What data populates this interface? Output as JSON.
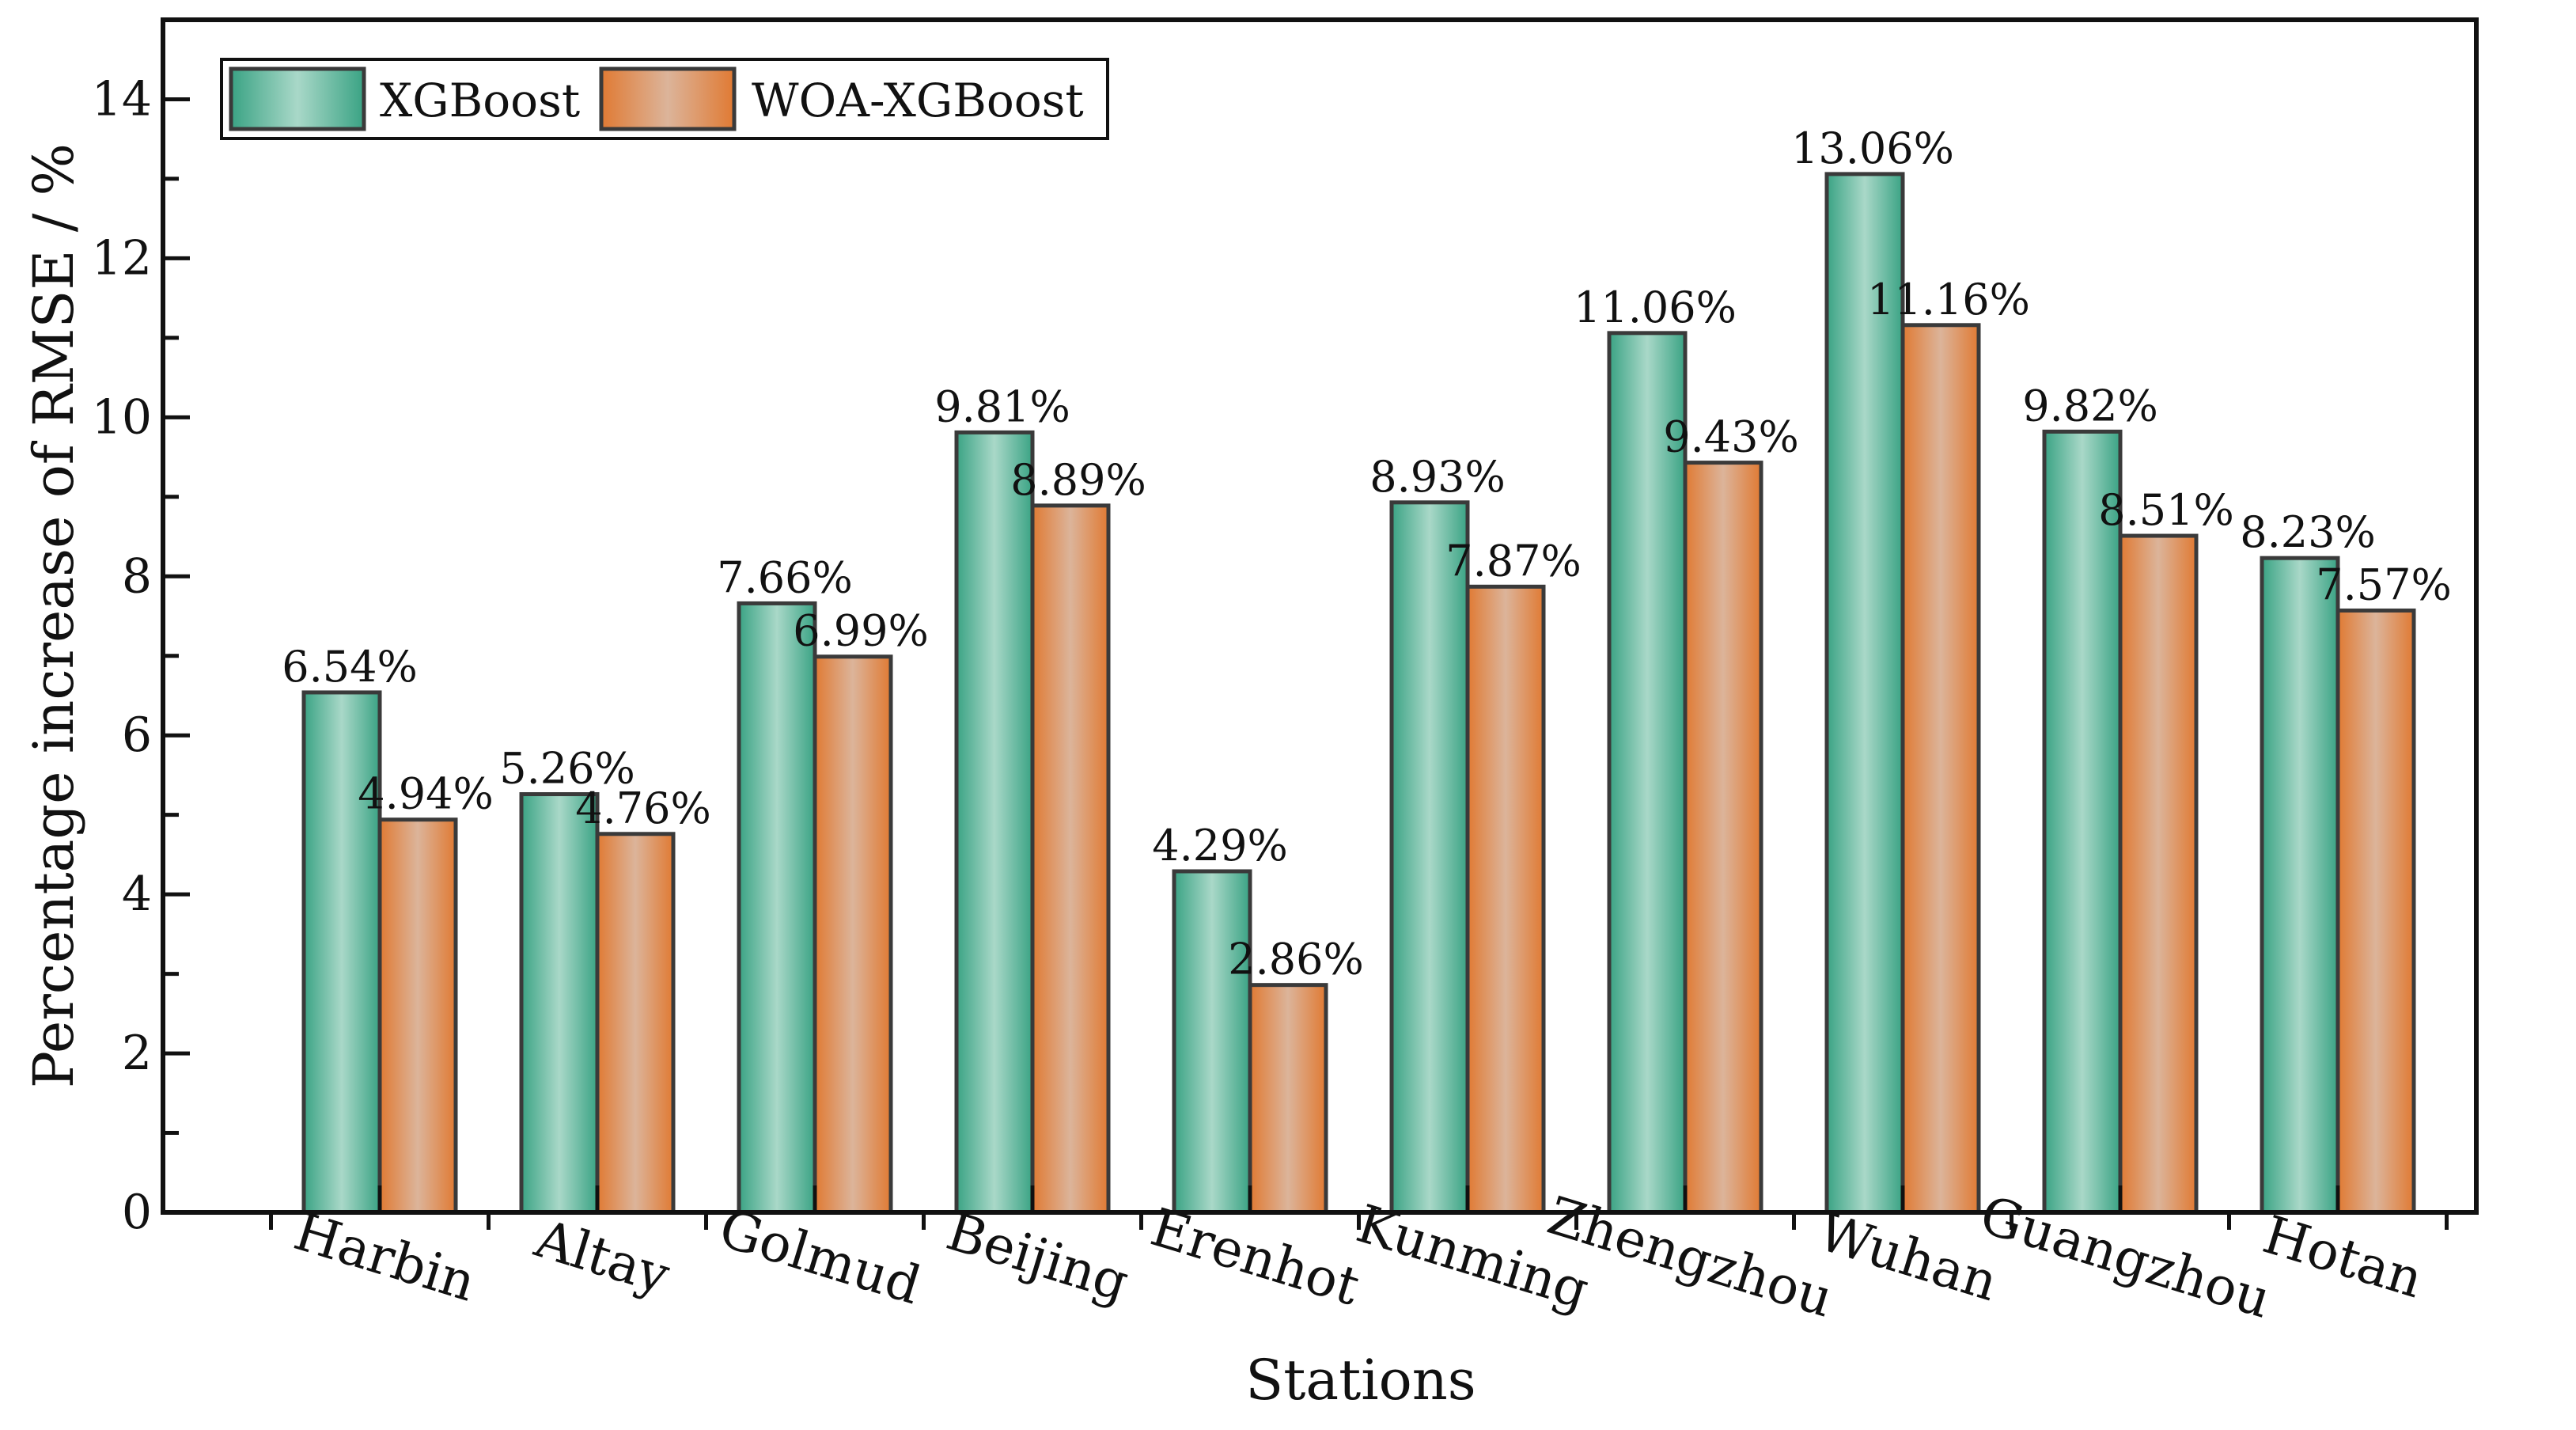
{
  "chart_data": {
    "type": "bar",
    "title": "",
    "xlabel": "Stations",
    "ylabel": "Percentage increase of RMSE / %",
    "ylim": [
      0,
      15
    ],
    "yticks": [
      0,
      2,
      4,
      6,
      8,
      10,
      12,
      14
    ],
    "legend_position": "top-left",
    "grid": false,
    "categories": [
      "Harbin",
      "Altay",
      "Golmud",
      "Beijing",
      "Erenhot",
      "Kunming",
      "Zhengzhou",
      "Wuhan",
      "Guangzhou",
      "Hotan"
    ],
    "series": [
      {
        "name": "XGBoost",
        "color": "#3aa384",
        "values": [
          6.54,
          5.26,
          7.66,
          9.81,
          4.29,
          8.93,
          11.06,
          13.06,
          9.82,
          8.23
        ],
        "labels": [
          "6.54%",
          "5.26%",
          "7.66%",
          "9.81%",
          "4.29%",
          "8.93%",
          "11.06%",
          "13.06%",
          "9.82%",
          "8.23%"
        ]
      },
      {
        "name": "WOA-XGBoost",
        "color": "#e07a33",
        "values": [
          4.94,
          4.76,
          6.99,
          8.89,
          2.86,
          7.87,
          9.43,
          11.16,
          8.51,
          7.57
        ],
        "labels": [
          "4.94%",
          "4.76%",
          "6.99%",
          "8.89%",
          "2.86%",
          "7.87%",
          "9.43%",
          "11.16%",
          "8.51%",
          "7.57%"
        ]
      }
    ]
  }
}
